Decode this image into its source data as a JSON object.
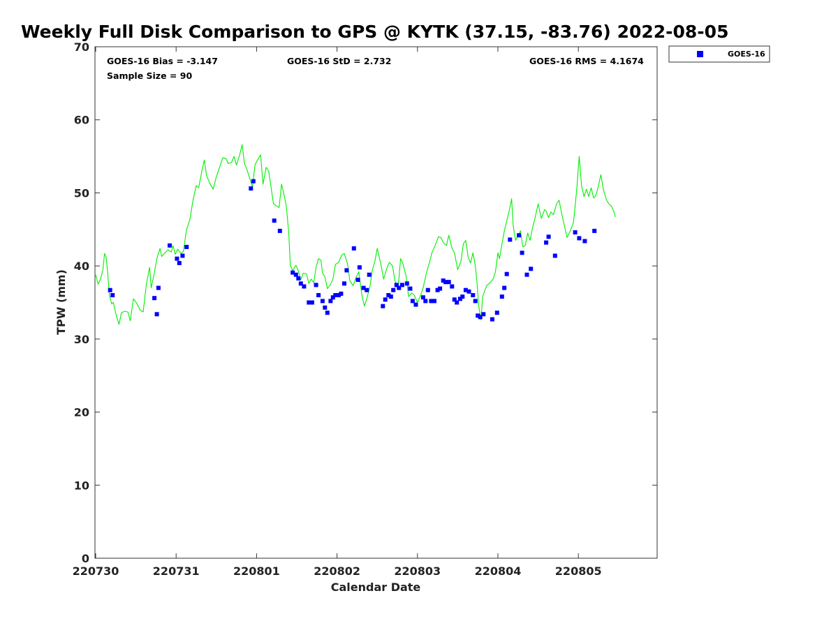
{
  "chart_data": {
    "type": "scatter",
    "title": "Weekly Full Disk Comparison to GPS @ KYTK (37.15, -83.76) 2022-08-05",
    "xlabel": "Calendar Date",
    "ylabel": "TPW (mm)",
    "ylim": [
      0,
      70
    ],
    "xlim": [
      220730,
      220806
    ],
    "x_ticks": [
      "220730",
      "220731",
      "220801",
      "220802",
      "220803",
      "220804",
      "220805"
    ],
    "y_ticks": [
      0,
      10,
      20,
      30,
      40,
      50,
      60,
      70
    ],
    "grid": false,
    "legend_position": "top-right",
    "stats": {
      "bias": "GOES-16 Bias = -3.147",
      "std": "GOES-16 StD = 2.732",
      "rms": "GOES-16 RMS = 4.1674",
      "sample": "Sample Size = 90"
    },
    "series": [
      {
        "name": "GOES-16",
        "kind": "scatter",
        "color": "#0000ff",
        "points": [
          [
            0.18,
            36.7
          ],
          [
            0.21,
            36.0
          ],
          [
            0.73,
            35.6
          ],
          [
            0.76,
            33.4
          ],
          [
            0.78,
            37.0
          ],
          [
            0.92,
            42.8
          ],
          [
            1.01,
            41.0
          ],
          [
            1.04,
            40.4
          ],
          [
            1.08,
            41.4
          ],
          [
            1.13,
            42.6
          ],
          [
            1.93,
            50.6
          ],
          [
            1.96,
            51.6
          ],
          [
            2.22,
            46.2
          ],
          [
            2.29,
            44.8
          ],
          [
            2.45,
            39.1
          ],
          [
            2.49,
            38.8
          ],
          [
            2.52,
            38.3
          ],
          [
            2.55,
            37.6
          ],
          [
            2.59,
            37.2
          ],
          [
            2.65,
            35.0
          ],
          [
            2.69,
            35.0
          ],
          [
            2.74,
            37.4
          ],
          [
            2.77,
            36.0
          ],
          [
            2.82,
            35.2
          ],
          [
            2.85,
            34.3
          ],
          [
            2.88,
            33.6
          ],
          [
            2.92,
            35.2
          ],
          [
            2.95,
            35.7
          ],
          [
            2.98,
            36.0
          ],
          [
            3.02,
            36.0
          ],
          [
            3.05,
            36.2
          ],
          [
            3.09,
            37.6
          ],
          [
            3.12,
            39.4
          ],
          [
            3.21,
            42.4
          ],
          [
            3.26,
            38.1
          ],
          [
            3.28,
            39.8
          ],
          [
            3.33,
            37.0
          ],
          [
            3.37,
            36.7
          ],
          [
            3.4,
            38.8
          ],
          [
            3.57,
            34.5
          ],
          [
            3.6,
            35.4
          ],
          [
            3.64,
            36.0
          ],
          [
            3.67,
            35.8
          ],
          [
            3.7,
            36.7
          ],
          [
            3.74,
            37.4
          ],
          [
            3.77,
            37.0
          ],
          [
            3.81,
            37.4
          ],
          [
            3.87,
            37.6
          ],
          [
            3.91,
            36.9
          ],
          [
            3.94,
            35.2
          ],
          [
            3.98,
            34.7
          ],
          [
            4.07,
            35.7
          ],
          [
            4.1,
            35.2
          ],
          [
            4.13,
            36.7
          ],
          [
            4.17,
            35.2
          ],
          [
            4.21,
            35.2
          ],
          [
            4.25,
            36.7
          ],
          [
            4.28,
            36.9
          ],
          [
            4.32,
            38.0
          ],
          [
            4.35,
            37.8
          ],
          [
            4.39,
            37.8
          ],
          [
            4.43,
            37.2
          ],
          [
            4.46,
            35.4
          ],
          [
            4.49,
            35.0
          ],
          [
            4.53,
            35.5
          ],
          [
            4.56,
            35.8
          ],
          [
            4.6,
            36.7
          ],
          [
            4.64,
            36.5
          ],
          [
            4.69,
            36.0
          ],
          [
            4.72,
            35.2
          ],
          [
            4.75,
            33.2
          ],
          [
            4.78,
            33.0
          ],
          [
            4.82,
            33.4
          ],
          [
            4.93,
            32.7
          ],
          [
            4.99,
            33.6
          ],
          [
            5.05,
            35.8
          ],
          [
            5.08,
            37.0
          ],
          [
            5.11,
            38.9
          ],
          [
            5.15,
            43.6
          ],
          [
            5.26,
            44.2
          ],
          [
            5.3,
            41.8
          ],
          [
            5.36,
            38.8
          ],
          [
            5.41,
            39.6
          ],
          [
            5.6,
            43.2
          ],
          [
            5.63,
            44.0
          ],
          [
            5.71,
            41.4
          ],
          [
            5.96,
            44.6
          ],
          [
            6.01,
            43.8
          ],
          [
            6.08,
            43.4
          ],
          [
            6.2,
            44.8
          ]
        ]
      },
      {
        "kind": "line",
        "color": "#00ee00",
        "points": [
          [
            0.0,
            38.8
          ],
          [
            0.03,
            37.5
          ],
          [
            0.06,
            38.2
          ],
          [
            0.09,
            39.5
          ],
          [
            0.11,
            41.7
          ],
          [
            0.13,
            41.2
          ],
          [
            0.15,
            39.0
          ],
          [
            0.17,
            36.0
          ],
          [
            0.2,
            34.8
          ],
          [
            0.22,
            35.0
          ],
          [
            0.25,
            33.5
          ],
          [
            0.29,
            32.0
          ],
          [
            0.32,
            33.6
          ],
          [
            0.36,
            33.8
          ],
          [
            0.4,
            33.7
          ],
          [
            0.43,
            32.5
          ],
          [
            0.47,
            35.5
          ],
          [
            0.51,
            34.9
          ],
          [
            0.55,
            34.0
          ],
          [
            0.59,
            33.7
          ],
          [
            0.63,
            37.5
          ],
          [
            0.67,
            39.8
          ],
          [
            0.69,
            37.0
          ],
          [
            0.72,
            38.5
          ],
          [
            0.76,
            41.0
          ],
          [
            0.8,
            42.4
          ],
          [
            0.82,
            41.3
          ],
          [
            0.86,
            41.8
          ],
          [
            0.9,
            42.2
          ],
          [
            0.94,
            41.9
          ],
          [
            0.96,
            42.8
          ],
          [
            0.99,
            41.6
          ],
          [
            1.02,
            42.3
          ],
          [
            1.06,
            41.7
          ],
          [
            1.09,
            42.0
          ],
          [
            1.13,
            45.0
          ],
          [
            1.17,
            46.3
          ],
          [
            1.21,
            49.0
          ],
          [
            1.25,
            51.0
          ],
          [
            1.28,
            50.7
          ],
          [
            1.32,
            53.0
          ],
          [
            1.35,
            54.5
          ],
          [
            1.38,
            52.3
          ],
          [
            1.42,
            51.3
          ],
          [
            1.46,
            50.5
          ],
          [
            1.5,
            52.2
          ],
          [
            1.54,
            53.5
          ],
          [
            1.58,
            54.8
          ],
          [
            1.62,
            54.7
          ],
          [
            1.65,
            54.0
          ],
          [
            1.69,
            54.2
          ],
          [
            1.72,
            55.0
          ],
          [
            1.75,
            53.8
          ],
          [
            1.79,
            55.2
          ],
          [
            1.82,
            56.6
          ],
          [
            1.85,
            54.0
          ],
          [
            1.88,
            53.2
          ],
          [
            1.92,
            51.8
          ],
          [
            1.95,
            50.8
          ],
          [
            1.98,
            53.8
          ],
          [
            2.01,
            54.5
          ],
          [
            2.05,
            55.2
          ],
          [
            2.08,
            51.2
          ],
          [
            2.12,
            53.5
          ],
          [
            2.15,
            53.0
          ],
          [
            2.18,
            50.8
          ],
          [
            2.21,
            48.5
          ],
          [
            2.25,
            48.2
          ],
          [
            2.28,
            48.0
          ],
          [
            2.31,
            51.2
          ],
          [
            2.34,
            49.8
          ],
          [
            2.37,
            48.2
          ],
          [
            2.4,
            44.5
          ],
          [
            2.42,
            40.0
          ],
          [
            2.45,
            39.4
          ],
          [
            2.49,
            40.1
          ],
          [
            2.52,
            39.3
          ],
          [
            2.55,
            38.1
          ],
          [
            2.58,
            39.0
          ],
          [
            2.62,
            38.9
          ],
          [
            2.65,
            37.6
          ],
          [
            2.68,
            38.2
          ],
          [
            2.71,
            37.7
          ],
          [
            2.74,
            39.8
          ],
          [
            2.77,
            41.0
          ],
          [
            2.8,
            40.8
          ],
          [
            2.82,
            39.0
          ],
          [
            2.85,
            38.5
          ],
          [
            2.88,
            36.9
          ],
          [
            2.92,
            37.5
          ],
          [
            2.95,
            38.2
          ],
          [
            2.98,
            40.2
          ],
          [
            3.02,
            40.5
          ],
          [
            3.06,
            41.5
          ],
          [
            3.09,
            41.7
          ],
          [
            3.13,
            40.3
          ],
          [
            3.16,
            38.0
          ],
          [
            3.2,
            37.3
          ],
          [
            3.24,
            38.5
          ],
          [
            3.27,
            39.2
          ],
          [
            3.31,
            36.0
          ],
          [
            3.34,
            34.5
          ],
          [
            3.37,
            35.5
          ],
          [
            3.41,
            37.2
          ],
          [
            3.44,
            39.5
          ],
          [
            3.47,
            40.6
          ],
          [
            3.5,
            42.4
          ],
          [
            3.54,
            40.5
          ],
          [
            3.58,
            38.2
          ],
          [
            3.62,
            39.7
          ],
          [
            3.65,
            40.5
          ],
          [
            3.69,
            40.0
          ],
          [
            3.72,
            38.0
          ],
          [
            3.76,
            37.0
          ],
          [
            3.79,
            41.0
          ],
          [
            3.82,
            40.3
          ],
          [
            3.86,
            38.5
          ],
          [
            3.89,
            35.8
          ],
          [
            3.93,
            36.3
          ],
          [
            3.96,
            36.0
          ],
          [
            4.0,
            35.0
          ],
          [
            4.04,
            36.0
          ],
          [
            4.07,
            37.0
          ],
          [
            4.11,
            39.0
          ],
          [
            4.15,
            40.5
          ],
          [
            4.18,
            41.8
          ],
          [
            4.22,
            42.8
          ],
          [
            4.26,
            44.0
          ],
          [
            4.29,
            43.9
          ],
          [
            4.32,
            43.2
          ],
          [
            4.36,
            42.8
          ],
          [
            4.39,
            44.2
          ],
          [
            4.43,
            42.4
          ],
          [
            4.46,
            41.8
          ],
          [
            4.5,
            39.5
          ],
          [
            4.54,
            40.6
          ],
          [
            4.57,
            43.0
          ],
          [
            4.6,
            43.5
          ],
          [
            4.63,
            41.2
          ],
          [
            4.66,
            40.4
          ],
          [
            4.69,
            41.8
          ],
          [
            4.72,
            40.0
          ],
          [
            4.74,
            37.8
          ],
          [
            4.76,
            34.6
          ],
          [
            4.79,
            32.6
          ],
          [
            4.81,
            35.8
          ],
          [
            4.83,
            36.4
          ],
          [
            4.86,
            37.3
          ],
          [
            4.9,
            37.7
          ],
          [
            4.94,
            38.2
          ],
          [
            4.97,
            39.2
          ],
          [
            5.0,
            41.8
          ],
          [
            5.02,
            41.0
          ],
          [
            5.05,
            43.0
          ],
          [
            5.08,
            44.8
          ],
          [
            5.11,
            46.2
          ],
          [
            5.14,
            47.5
          ],
          [
            5.17,
            49.2
          ],
          [
            5.19,
            45.5
          ],
          [
            5.22,
            43.5
          ],
          [
            5.25,
            44.2
          ],
          [
            5.28,
            44.8
          ],
          [
            5.31,
            42.6
          ],
          [
            5.34,
            42.8
          ],
          [
            5.37,
            44.5
          ],
          [
            5.4,
            43.5
          ],
          [
            5.43,
            45.2
          ],
          [
            5.46,
            46.5
          ],
          [
            5.5,
            48.5
          ],
          [
            5.54,
            46.5
          ],
          [
            5.58,
            47.7
          ],
          [
            5.6,
            47.5
          ],
          [
            5.63,
            46.6
          ],
          [
            5.66,
            47.4
          ],
          [
            5.69,
            47.0
          ],
          [
            5.73,
            48.5
          ],
          [
            5.76,
            49.0
          ],
          [
            5.79,
            47.3
          ],
          [
            5.82,
            45.8
          ],
          [
            5.86,
            43.9
          ],
          [
            5.9,
            44.8
          ],
          [
            5.94,
            46.0
          ],
          [
            5.98,
            50.5
          ],
          [
            6.01,
            55.0
          ],
          [
            6.04,
            51.0
          ],
          [
            6.07,
            49.5
          ],
          [
            6.1,
            50.5
          ],
          [
            6.13,
            49.5
          ],
          [
            6.16,
            50.7
          ],
          [
            6.19,
            49.3
          ],
          [
            6.22,
            49.7
          ],
          [
            6.25,
            51.0
          ],
          [
            6.28,
            52.5
          ],
          [
            6.31,
            50.5
          ],
          [
            6.35,
            49.0
          ],
          [
            6.38,
            48.5
          ],
          [
            6.41,
            48.2
          ],
          [
            6.44,
            47.5
          ],
          [
            6.46,
            46.7
          ]
        ]
      }
    ]
  }
}
